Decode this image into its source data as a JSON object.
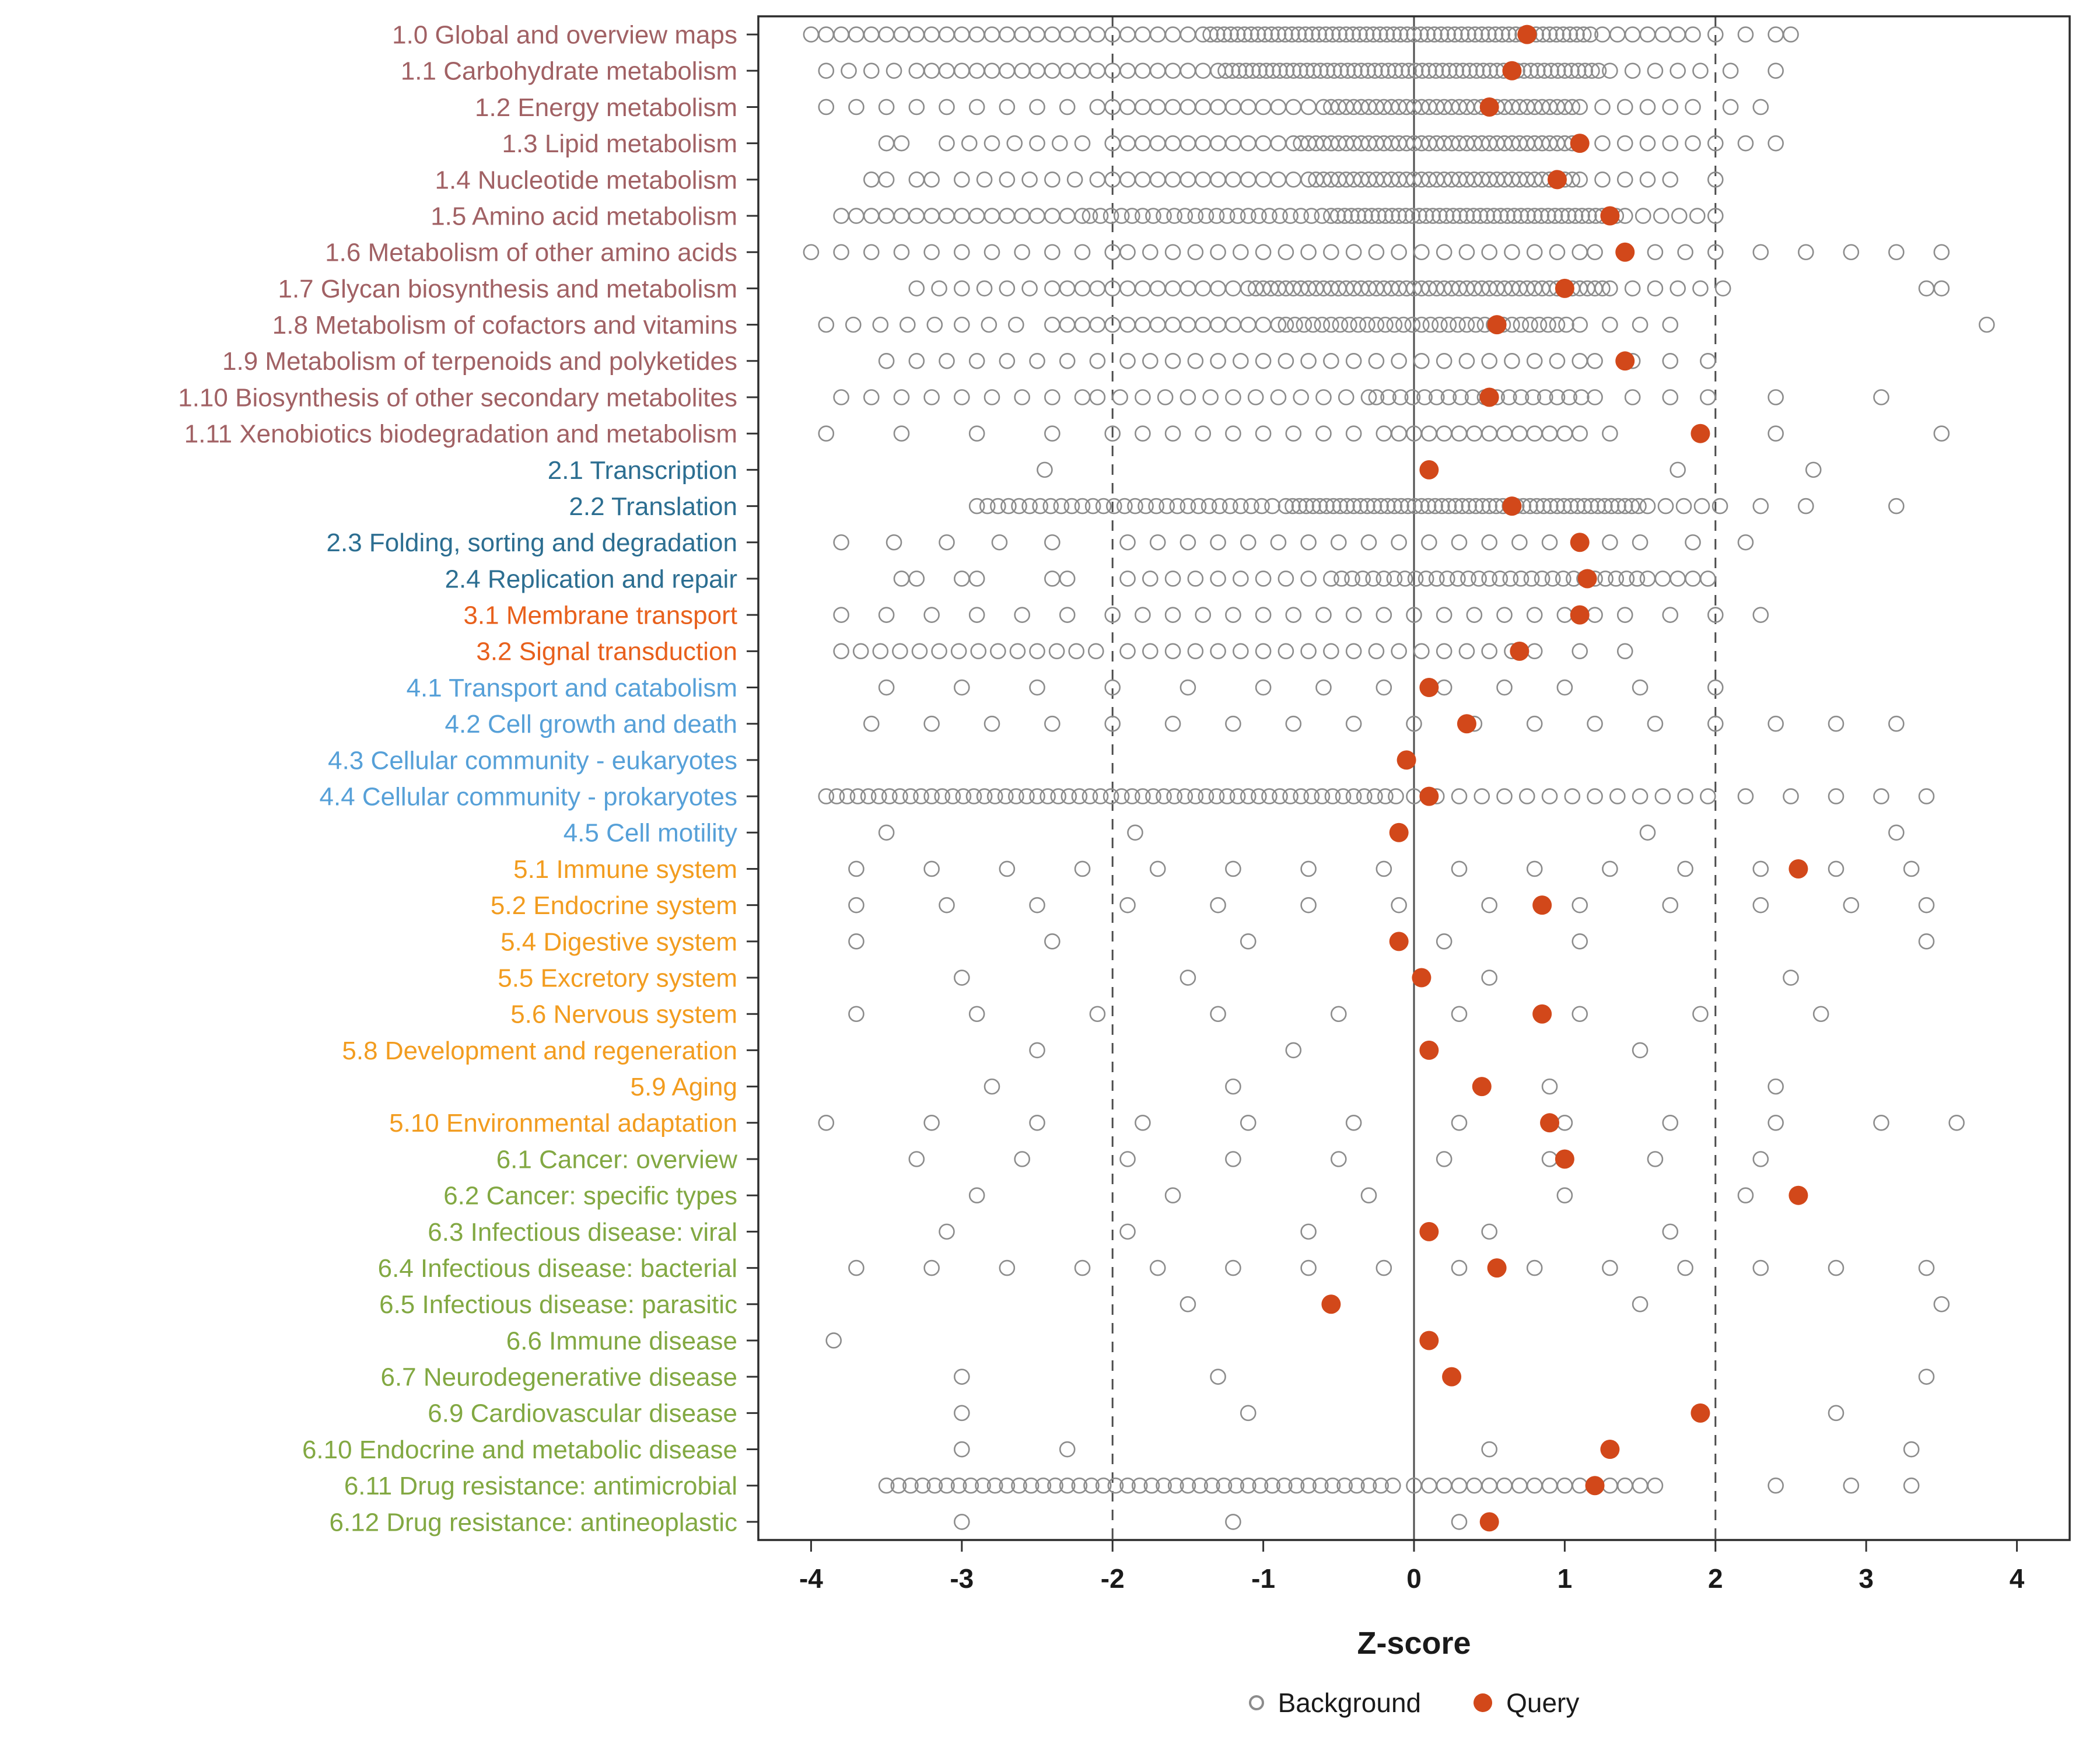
{
  "chart_data": {
    "type": "scatter",
    "subtype": "dot-strip-plot",
    "title": "",
    "xlabel": "Z-score",
    "ylabel": "",
    "xlim": [
      -4.35,
      4.35
    ],
    "xticks": [
      -4,
      -3,
      -2,
      -1,
      0,
      1,
      2,
      3,
      4
    ],
    "grid": "off",
    "reference_lines": {
      "solid": [
        0
      ],
      "dashed": [
        -2,
        2
      ]
    },
    "legend": [
      "Background",
      "Query"
    ],
    "legend_position": "bottom",
    "colors": {
      "query": "#D2481A",
      "background_stroke": "#8C8C8C",
      "reference_line": "#4D4D4D",
      "panel_border": "#2B2B2B",
      "axis_text": "#1A1A1A",
      "groups": {
        "1": "#A16164",
        "2": "#2C6E91",
        "3": "#E8601C",
        "4": "#56A0D8",
        "5": "#F29C1F",
        "6": "#82A842"
      }
    },
    "background_encoding": "background arrays list x values; an entry of form [start,end,step] denotes an evenly spaced run of overlapping points",
    "categories": [
      {
        "label": "1.0 Global and overview maps",
        "group": "1",
        "query": 0.75,
        "background": [
          [
            -4,
            -1.4,
            0.1
          ],
          [
            -1.35,
            1.2,
            0.045
          ],
          [
            1.25,
            1.85,
            0.1
          ],
          2,
          2.2,
          2.4,
          2.5
        ]
      },
      {
        "label": "1.1 Carbohydrate metabolism",
        "group": "1",
        "query": 0.65,
        "background": [
          [
            -3.9,
            -3.3,
            0.15
          ],
          [
            -3.2,
            -1.3,
            0.1
          ],
          [
            -1.25,
            1.25,
            0.045
          ],
          [
            1.3,
            1.9,
            0.15
          ],
          2.1,
          2.4
        ]
      },
      {
        "label": "1.2 Energy metabolism",
        "group": "1",
        "query": 0.5,
        "background": [
          [
            -3.9,
            -2.1,
            0.2
          ],
          [
            -2,
            -0.6,
            0.1
          ],
          [
            -0.55,
            1.05,
            0.05
          ],
          [
            1.1,
            1.9,
            0.15
          ],
          2.1,
          2.3
        ]
      },
      {
        "label": "1.3 Lipid metabolism",
        "group": "1",
        "query": 1.1,
        "background": [
          -3.5,
          -3.4,
          [
            -3.1,
            -2.1,
            0.15
          ],
          [
            -2,
            -0.8,
            0.1
          ],
          [
            -0.75,
            1.05,
            0.05
          ],
          [
            1.1,
            2,
            0.15
          ],
          2.2,
          2.4
        ]
      },
      {
        "label": "1.4 Nucleotide metabolism",
        "group": "1",
        "query": 0.95,
        "background": [
          -3.6,
          -3.5,
          -3.3,
          -3.2,
          [
            -3,
            -2.2,
            0.15
          ],
          [
            -2.1,
            -0.7,
            0.1
          ],
          [
            -0.65,
            1.05,
            0.05
          ],
          [
            1.1,
            1.8,
            0.15
          ],
          2
        ]
      },
      {
        "label": "1.5 Amino acid metabolism",
        "group": "1",
        "query": 1.3,
        "background": [
          [
            -3.8,
            -2.2,
            0.1
          ],
          [
            -2.15,
            -0.6,
            0.07
          ],
          [
            -0.55,
            1.35,
            0.045
          ],
          [
            1.4,
            2.1,
            0.12
          ]
        ]
      },
      {
        "label": "1.6 Metabolism of other amino acids",
        "group": "1",
        "query": 1.4,
        "background": [
          [
            -4,
            -2,
            0.2
          ],
          [
            -1.9,
            1.1,
            0.15
          ],
          [
            1.2,
            2,
            0.2
          ],
          2.3,
          2.6,
          2.9,
          3.2,
          3.5
        ]
      },
      {
        "label": "1.7 Glycan biosynthesis and metabolism",
        "group": "1",
        "query": 1.0,
        "background": [
          [
            -3.3,
            -2.4,
            0.15
          ],
          [
            -2.3,
            -1.1,
            0.1
          ],
          [
            -1.05,
            1.25,
            0.05
          ],
          [
            1.3,
            2.1,
            0.15
          ],
          3.4,
          3.5
        ]
      },
      {
        "label": "1.8 Metabolism of cofactors and vitamins",
        "group": "1",
        "query": 0.55,
        "background": [
          [
            -3.9,
            -2.5,
            0.18
          ],
          [
            -2.4,
            -0.9,
            0.1
          ],
          [
            -0.85,
            1.05,
            0.06
          ],
          [
            1.1,
            1.7,
            0.2
          ],
          3.8
        ]
      },
      {
        "label": "1.9 Metabolism of terpenoids and polyketides",
        "group": "1",
        "query": 1.4,
        "background": [
          [
            -3.5,
            -2,
            0.2
          ],
          [
            -1.9,
            1.1,
            0.15
          ],
          [
            1.2,
            2,
            0.25
          ]
        ]
      },
      {
        "label": "1.10 Biosynthesis of other secondary metabolites",
        "group": "1",
        "query": 0.5,
        "background": [
          [
            -3.8,
            -2.2,
            0.2
          ],
          [
            -2.1,
            -0.3,
            0.15
          ],
          [
            -0.25,
            1.15,
            0.08
          ],
          [
            1.2,
            2,
            0.25
          ],
          2.4,
          3.1
        ]
      },
      {
        "label": "1.11 Xenobiotics biodegradation and metabolism",
        "group": "1",
        "query": 1.9,
        "background": [
          -3.9,
          -3.4,
          -2.9,
          -2.4,
          [
            -2,
            -0.2,
            0.2
          ],
          [
            -0.1,
            1.1,
            0.1
          ],
          1.3,
          2.4,
          3.5
        ]
      },
      {
        "label": "2.1 Transcription",
        "group": "2",
        "query": 0.1,
        "background": [
          -2.45,
          1.75,
          2.65
        ]
      },
      {
        "label": "2.2 Translation",
        "group": "2",
        "query": 0.65,
        "background": [
          [
            -2.9,
            -0.9,
            0.07
          ],
          [
            -0.85,
            1.5,
            0.045
          ],
          [
            1.55,
            2.1,
            0.12
          ],
          2.3,
          2.6,
          3.2
        ]
      },
      {
        "label": "2.3 Folding, sorting and degradation",
        "group": "2",
        "query": 1.1,
        "background": [
          [
            -3.8,
            -2.1,
            0.35
          ],
          [
            -1.9,
            1.3,
            0.2
          ],
          [
            1.5,
            2.2,
            0.35
          ]
        ]
      },
      {
        "label": "2.4 Replication and repair",
        "group": "2",
        "query": 1.15,
        "background": [
          -3.4,
          -3.3,
          -3,
          -2.9,
          -2.4,
          -2.3,
          [
            -1.9,
            -0.6,
            0.15
          ],
          [
            -0.55,
            1.6,
            0.07
          ],
          [
            1.65,
            1.95,
            0.1
          ]
        ]
      },
      {
        "label": "3.1 Membrane transport",
        "group": "3",
        "query": 1.1,
        "background": [
          [
            -3.8,
            -2.2,
            0.3
          ],
          [
            -2,
            1.2,
            0.2
          ],
          [
            1.4,
            2.4,
            0.3
          ]
        ]
      },
      {
        "label": "3.2 Signal transduction",
        "group": "3",
        "query": 0.7,
        "background": [
          [
            -3.8,
            -2,
            0.13
          ],
          [
            -1.9,
            0.9,
            0.15
          ],
          1.1,
          1.4
        ]
      },
      {
        "label": "4.1 Transport and catabolism",
        "group": "4",
        "query": 0.1,
        "background": [
          -3.5,
          -3,
          -2.5,
          -2,
          -1.5,
          -1,
          -0.6,
          -0.2,
          0.2,
          0.6,
          1,
          1.5,
          2
        ]
      },
      {
        "label": "4.2 Cell growth and death",
        "group": "4",
        "query": 0.35,
        "background": [
          [
            -3.6,
            3.2,
            0.4
          ]
        ]
      },
      {
        "label": "4.3 Cellular community - eukaryotes",
        "group": "4",
        "query": -0.05,
        "background": []
      },
      {
        "label": "4.4 Cellular community - prokaryotes",
        "group": "4",
        "query": 0.1,
        "background": [
          [
            -3.9,
            -0.1,
            0.07
          ],
          [
            0,
            2,
            0.15
          ],
          [
            2.2,
            3.6,
            0.3
          ]
        ]
      },
      {
        "label": "4.5 Cell motility",
        "group": "4",
        "query": -0.1,
        "background": [
          -3.5,
          -1.85,
          1.55,
          3.2
        ]
      },
      {
        "label": "5.1 Immune system",
        "group": "5",
        "query": 2.55,
        "background": [
          -3.7,
          -3.2,
          -2.7,
          -2.2,
          -1.7,
          -1.2,
          -0.7,
          -0.2,
          0.3,
          0.8,
          1.3,
          1.8,
          2.3,
          2.8,
          3.3
        ]
      },
      {
        "label": "5.2 Endocrine system",
        "group": "5",
        "query": 0.85,
        "background": [
          -3.7,
          -3.1,
          -2.5,
          -1.9,
          -1.3,
          -0.7,
          -0.1,
          0.5,
          1.1,
          1.7,
          2.3,
          2.9,
          3.4
        ]
      },
      {
        "label": "5.4 Digestive system",
        "group": "5",
        "query": -0.1,
        "background": [
          -3.7,
          -2.4,
          -1.1,
          0.2,
          1.1,
          3.4
        ]
      },
      {
        "label": "5.5 Excretory system",
        "group": "5",
        "query": 0.05,
        "background": [
          -3,
          -1.5,
          0.5,
          2.5
        ]
      },
      {
        "label": "5.6 Nervous system",
        "group": "5",
        "query": 0.85,
        "background": [
          -3.7,
          -2.9,
          -2.1,
          -1.3,
          -0.5,
          0.3,
          1.1,
          1.9,
          2.7
        ]
      },
      {
        "label": "5.8 Development and regeneration",
        "group": "5",
        "query": 0.1,
        "background": [
          -2.5,
          -0.8,
          1.5
        ]
      },
      {
        "label": "5.9 Aging",
        "group": "5",
        "query": 0.45,
        "background": [
          -2.8,
          -1.2,
          0.9,
          2.4
        ]
      },
      {
        "label": "5.10 Environmental adaptation",
        "group": "5",
        "query": 0.9,
        "background": [
          -3.9,
          -3.2,
          -2.5,
          -1.8,
          -1.1,
          -0.4,
          0.3,
          1,
          1.7,
          2.4,
          3.1,
          3.6
        ]
      },
      {
        "label": "6.1 Cancer: overview",
        "group": "6",
        "query": 1.0,
        "background": [
          -3.3,
          -2.6,
          -1.9,
          -1.2,
          -0.5,
          0.2,
          0.9,
          1.6,
          2.3
        ]
      },
      {
        "label": "6.2 Cancer: specific types",
        "group": "6",
        "query": 2.55,
        "background": [
          -2.9,
          -1.6,
          -0.3,
          1,
          2.2
        ]
      },
      {
        "label": "6.3 Infectious disease: viral",
        "group": "6",
        "query": 0.1,
        "background": [
          -3.1,
          -1.9,
          -0.7,
          0.5,
          1.7
        ]
      },
      {
        "label": "6.4 Infectious disease: bacterial",
        "group": "6",
        "query": 0.55,
        "background": [
          -3.7,
          -3.2,
          -2.7,
          -2.2,
          -1.7,
          -1.2,
          -0.7,
          -0.2,
          0.3,
          0.8,
          1.3,
          1.8,
          2.3,
          2.8,
          3.4
        ]
      },
      {
        "label": "6.5 Infectious disease: parasitic",
        "group": "6",
        "query": -0.55,
        "background": [
          -1.5,
          1.5,
          3.5
        ]
      },
      {
        "label": "6.6 Immune disease",
        "group": "6",
        "query": 0.1,
        "background": [
          -3.85
        ]
      },
      {
        "label": "6.7 Neurodegenerative disease",
        "group": "6",
        "query": 0.25,
        "background": [
          -3,
          -1.3,
          3.4
        ]
      },
      {
        "label": "6.9 Cardiovascular disease",
        "group": "6",
        "query": 1.9,
        "background": [
          -3,
          -1.1,
          2.8
        ]
      },
      {
        "label": "6.10 Endocrine and metabolic disease",
        "group": "6",
        "query": 1.3,
        "background": [
          -3,
          -2.3,
          0.5,
          3.3
        ]
      },
      {
        "label": "6.11 Drug resistance: antimicrobial",
        "group": "6",
        "query": 1.2,
        "background": [
          [
            -3.5,
            -0.1,
            0.08
          ],
          [
            0,
            1.6,
            0.1
          ],
          2.4,
          2.9,
          3.3
        ]
      },
      {
        "label": "6.12 Drug resistance: antineoplastic",
        "group": "6",
        "query": 0.5,
        "background": [
          -3,
          -1.2,
          0.3
        ]
      }
    ]
  }
}
